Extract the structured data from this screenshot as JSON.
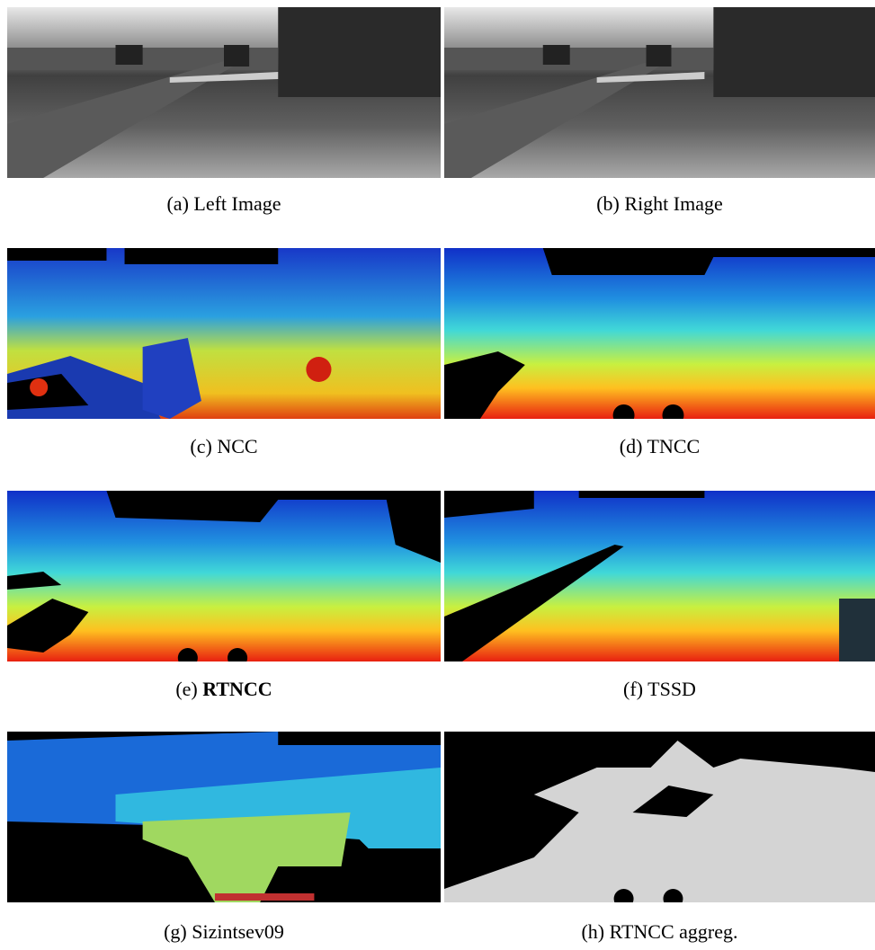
{
  "panels": [
    {
      "label": "(a)",
      "name": "Left Image"
    },
    {
      "label": "(b)",
      "name": "Right Image"
    },
    {
      "label": "(c)",
      "name": "NCC"
    },
    {
      "label": "(d)",
      "name": "TNCC"
    },
    {
      "label": "(e)",
      "name": "RTNCC",
      "bold": true
    },
    {
      "label": "(f)",
      "name": "TSSD"
    },
    {
      "label": "(g)",
      "name": "Sizintsev09"
    },
    {
      "label": "(h)",
      "name": "RTNCC aggreg."
    }
  ]
}
